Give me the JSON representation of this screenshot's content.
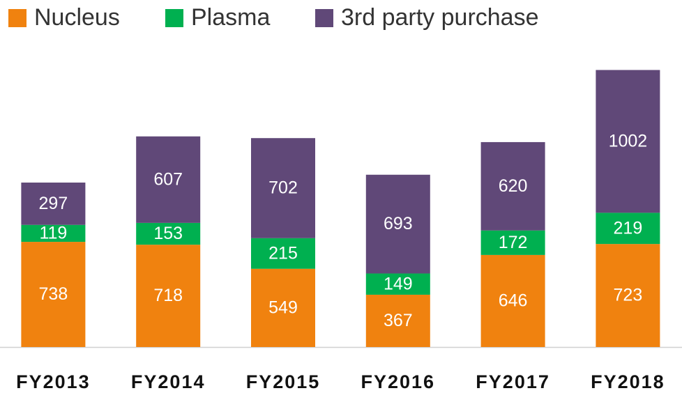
{
  "chart_data": {
    "type": "stacked_bar",
    "categories": [
      "FY2013",
      "FY2014",
      "FY2015",
      "FY2016",
      "FY2017",
      "FY2018"
    ],
    "series": [
      {
        "name": "Nucleus",
        "color": "#f0820f",
        "values": [
          738,
          718,
          549,
          367,
          646,
          723
        ]
      },
      {
        "name": "Plasma",
        "color": "#00b050",
        "values": [
          119,
          153,
          215,
          149,
          172,
          219
        ]
      },
      {
        "name": "3rd party purchase",
        "color": "#604878",
        "values": [
          297,
          607,
          702,
          693,
          620,
          1002
        ]
      }
    ],
    "ylim": [
      0,
      2000
    ]
  }
}
